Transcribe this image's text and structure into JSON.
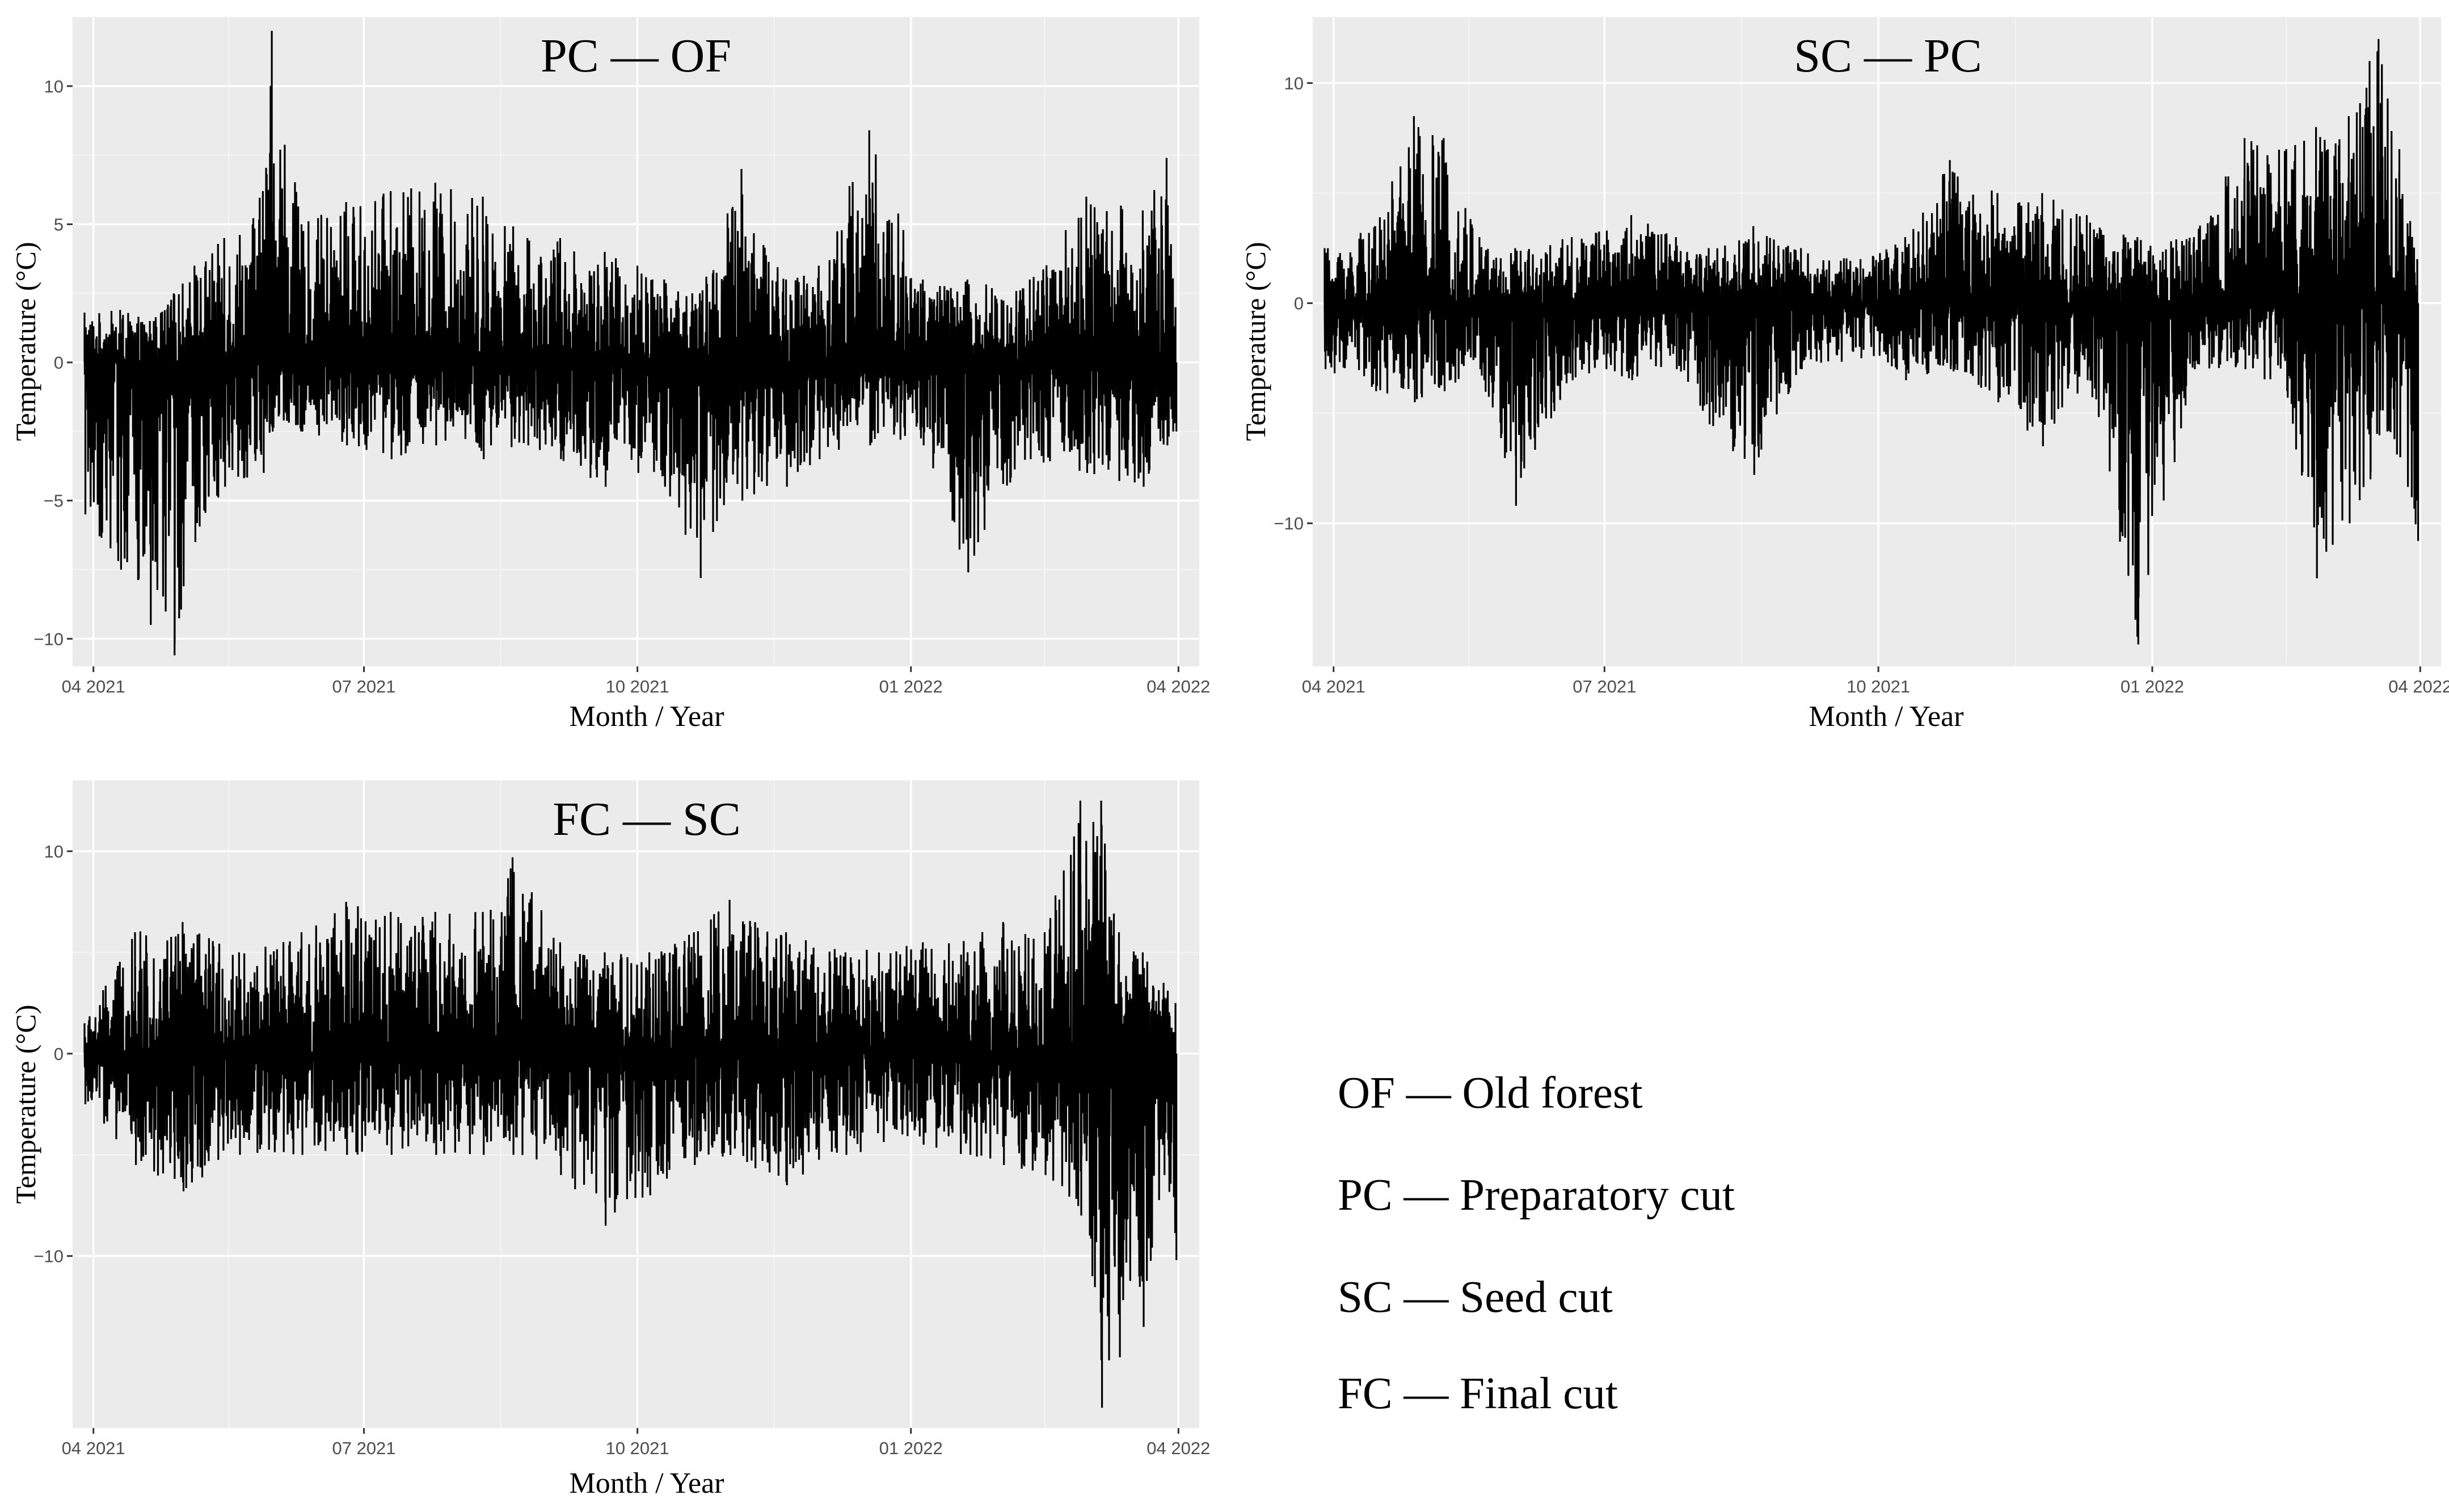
{
  "chart_data": [
    {
      "type": "line",
      "title": "PC — OF",
      "xlabel": "Month / Year",
      "ylabel": "Temperature (°C)",
      "x_tick_labels": [
        "04 2021",
        "07 2021",
        "10 2021",
        "01 2022",
        "04 2022"
      ],
      "x_ticks": [
        "2021-04-01",
        "2021-07-01",
        "2021-10-01",
        "2022-01-01",
        "2022-04-01"
      ],
      "xlim": [
        "2021-03-25",
        "2022-04-08"
      ],
      "x_range": [
        "2021-03-29",
        "2022-03-31"
      ],
      "y_ticks": [
        10,
        5,
        0,
        -5,
        -10
      ],
      "y_tick_labels": [
        "10",
        "5",
        "0",
        "−5",
        "−10"
      ],
      "ylim": [
        -11,
        12.5
      ],
      "grid": true,
      "series": [
        {
          "envelope": [
            {
              "x": "2021-03-29",
              "max": 1.8,
              "min": -5.5
            },
            {
              "x": "2021-04-10",
              "max": 1.9,
              "min": -7.5
            },
            {
              "x": "2021-04-20",
              "max": 1.5,
              "min": -9.5
            },
            {
              "x": "2021-04-28",
              "max": 2.5,
              "min": -10.6
            },
            {
              "x": "2021-05-05",
              "max": 3.5,
              "min": -6.5
            },
            {
              "x": "2021-05-15",
              "max": 4.5,
              "min": -4.5
            },
            {
              "x": "2021-05-28",
              "max": 6.2,
              "min": -4
            },
            {
              "x": "2021-05-31",
              "max": 12,
              "min": -2.5
            },
            {
              "x": "2021-06-10",
              "max": 5,
              "min": -2.5
            },
            {
              "x": "2021-06-25",
              "max": 5.8,
              "min": -3
            },
            {
              "x": "2021-07-10",
              "max": 6.2,
              "min": -3.5
            },
            {
              "x": "2021-07-25",
              "max": 6.5,
              "min": -3
            },
            {
              "x": "2021-08-10",
              "max": 6,
              "min": -3.5
            },
            {
              "x": "2021-08-25",
              "max": 4.5,
              "min": -3
            },
            {
              "x": "2021-09-05",
              "max": 4.5,
              "min": -3.5
            },
            {
              "x": "2021-09-20",
              "max": 4,
              "min": -4.5
            },
            {
              "x": "2021-10-01",
              "max": 3.5,
              "min": -4
            },
            {
              "x": "2021-10-10",
              "max": 3,
              "min": -4.5
            },
            {
              "x": "2021-10-22",
              "max": 2.5,
              "min": -7.8
            },
            {
              "x": "2021-11-05",
              "max": 7,
              "min": -5
            },
            {
              "x": "2021-11-20",
              "max": 3,
              "min": -4.5
            },
            {
              "x": "2021-12-01",
              "max": 3.5,
              "min": -3.5
            },
            {
              "x": "2021-12-18",
              "max": 8.4,
              "min": -3
            },
            {
              "x": "2022-01-05",
              "max": 3,
              "min": -3
            },
            {
              "x": "2022-01-20",
              "max": 3,
              "min": -7.6
            },
            {
              "x": "2022-02-10",
              "max": 3,
              "min": -3.5
            },
            {
              "x": "2022-03-01",
              "max": 6,
              "min": -4
            },
            {
              "x": "2022-03-20",
              "max": 5.5,
              "min": -4.5
            },
            {
              "x": "2022-03-28",
              "max": 7.4,
              "min": -3
            },
            {
              "x": "2022-03-31",
              "max": 2,
              "min": -2.5
            }
          ]
        }
      ]
    },
    {
      "type": "line",
      "title": "SC — PC",
      "xlabel": "Month / Year",
      "ylabel": "Temperature (°C)",
      "x_tick_labels": [
        "04 2021",
        "07 2021",
        "10 2021",
        "01 2022",
        "04 2022"
      ],
      "x_ticks": [
        "2021-04-01",
        "2021-07-01",
        "2021-10-01",
        "2022-01-01",
        "2022-04-01"
      ],
      "xlim": [
        "2021-03-25",
        "2022-04-08"
      ],
      "x_range": [
        "2021-03-29",
        "2022-03-31"
      ],
      "y_ticks": [
        10,
        0,
        -10
      ],
      "y_tick_labels": [
        "10",
        "0",
        "−10"
      ],
      "ylim": [
        -16.5,
        13
      ],
      "grid": true,
      "series": [
        {
          "envelope": [
            {
              "x": "2021-03-29",
              "max": 2.5,
              "min": -3
            },
            {
              "x": "2021-04-15",
              "max": 3.5,
              "min": -4
            },
            {
              "x": "2021-04-28",
              "max": 8.5,
              "min": -4.5
            },
            {
              "x": "2021-05-08",
              "max": 7.5,
              "min": -4
            },
            {
              "x": "2021-05-20",
              "max": 3,
              "min": -3
            },
            {
              "x": "2021-06-01",
              "max": 2.5,
              "min": -9.2
            },
            {
              "x": "2021-06-20",
              "max": 3,
              "min": -3.5
            },
            {
              "x": "2021-07-10",
              "max": 4,
              "min": -3.5
            },
            {
              "x": "2021-07-25",
              "max": 3,
              "min": -3
            },
            {
              "x": "2021-08-05",
              "max": 2.5,
              "min": -5.5
            },
            {
              "x": "2021-08-20",
              "max": 3.5,
              "min": -7.8
            },
            {
              "x": "2021-09-05",
              "max": 2.5,
              "min": -3
            },
            {
              "x": "2021-09-25",
              "max": 2,
              "min": -2.5
            },
            {
              "x": "2021-10-10",
              "max": 3,
              "min": -3.5
            },
            {
              "x": "2021-10-25",
              "max": 6.5,
              "min": -3
            },
            {
              "x": "2021-11-10",
              "max": 5,
              "min": -4.5
            },
            {
              "x": "2021-11-25",
              "max": 5,
              "min": -6.5
            },
            {
              "x": "2021-12-10",
              "max": 4,
              "min": -3.5
            },
            {
              "x": "2021-12-27",
              "max": 3,
              "min": -15.5
            },
            {
              "x": "2022-01-15",
              "max": 3,
              "min": -3
            },
            {
              "x": "2022-02-01",
              "max": 7.5,
              "min": -3
            },
            {
              "x": "2022-02-15",
              "max": 7,
              "min": -4
            },
            {
              "x": "2022-02-25",
              "max": 8,
              "min": -12.5
            },
            {
              "x": "2022-03-08",
              "max": 8.5,
              "min": -10
            },
            {
              "x": "2022-03-15",
              "max": 11,
              "min": -8
            },
            {
              "x": "2022-03-18",
              "max": 12,
              "min": -6
            },
            {
              "x": "2022-03-25",
              "max": 7,
              "min": -7
            },
            {
              "x": "2022-03-31",
              "max": 2,
              "min": -10.8
            }
          ]
        }
      ]
    },
    {
      "type": "line",
      "title": "FC — SC",
      "xlabel": "Month / Year",
      "ylabel": "Temperature (°C)",
      "x_tick_labels": [
        "04 2021",
        "07 2021",
        "10 2021",
        "01 2022",
        "04 2022"
      ],
      "x_ticks": [
        "2021-04-01",
        "2021-07-01",
        "2021-10-01",
        "2022-01-01",
        "2022-04-01"
      ],
      "xlim": [
        "2021-03-25",
        "2022-04-08"
      ],
      "x_range": [
        "2021-03-29",
        "2022-03-31"
      ],
      "y_ticks": [
        10,
        0,
        -10
      ],
      "y_tick_labels": [
        "10",
        "0",
        "−10"
      ],
      "ylim": [
        -18.5,
        13.5
      ],
      "grid": true,
      "series": [
        {
          "envelope": [
            {
              "x": "2021-03-29",
              "max": 1.5,
              "min": -2.5
            },
            {
              "x": "2021-04-15",
              "max": 6,
              "min": -5.5
            },
            {
              "x": "2021-05-01",
              "max": 6.5,
              "min": -6.8
            },
            {
              "x": "2021-05-20",
              "max": 5,
              "min": -5
            },
            {
              "x": "2021-06-10",
              "max": 6,
              "min": -5
            },
            {
              "x": "2021-06-25",
              "max": 7.5,
              "min": -5
            },
            {
              "x": "2021-07-10",
              "max": 7,
              "min": -5
            },
            {
              "x": "2021-07-25",
              "max": 7,
              "min": -5
            },
            {
              "x": "2021-08-10",
              "max": 7,
              "min": -5
            },
            {
              "x": "2021-08-20",
              "max": 9.7,
              "min": -5
            },
            {
              "x": "2021-09-05",
              "max": 5.5,
              "min": -6
            },
            {
              "x": "2021-09-20",
              "max": 5,
              "min": -8.5
            },
            {
              "x": "2021-10-05",
              "max": 5,
              "min": -7
            },
            {
              "x": "2021-10-20",
              "max": 6,
              "min": -5.5
            },
            {
              "x": "2021-11-01",
              "max": 7.6,
              "min": -5
            },
            {
              "x": "2021-11-20",
              "max": 6,
              "min": -6.5
            },
            {
              "x": "2021-12-10",
              "max": 5,
              "min": -5
            },
            {
              "x": "2022-01-05",
              "max": 5.5,
              "min": -4.5
            },
            {
              "x": "2022-02-01",
              "max": 6.5,
              "min": -5.5
            },
            {
              "x": "2022-02-15",
              "max": 6,
              "min": -6
            },
            {
              "x": "2022-02-27",
              "max": 12.5,
              "min": -8
            },
            {
              "x": "2022-03-06",
              "max": 12.5,
              "min": -17.5
            },
            {
              "x": "2022-03-12",
              "max": 6,
              "min": -15
            },
            {
              "x": "2022-03-20",
              "max": 5,
              "min": -13.5
            },
            {
              "x": "2022-03-27",
              "max": 3.5,
              "min": -6
            },
            {
              "x": "2022-03-31",
              "max": 2.5,
              "min": -10.2
            }
          ]
        }
      ]
    }
  ],
  "legend": {
    "items": [
      "OF — Old forest",
      "PC — Preparatory cut",
      "SC — Seed cut",
      "FC — Final cut"
    ]
  }
}
